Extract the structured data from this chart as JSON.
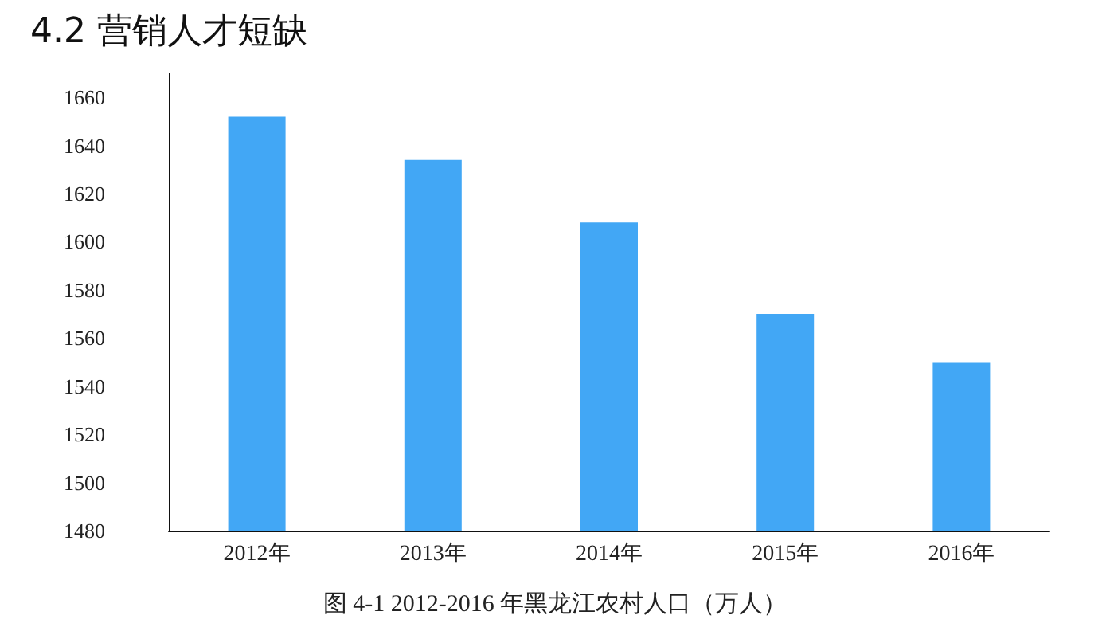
{
  "chart_data": {
    "type": "bar",
    "title": "4.2 营销人才短缺",
    "categories": [
      "2012年",
      "2013年",
      "2014年",
      "2015年",
      "2016年"
    ],
    "values": [
      1652,
      1634,
      1608,
      1570,
      1550
    ],
    "color": "#42a7f5",
    "ylim": [
      1480,
      1670
    ],
    "yticks": [
      1480,
      1500,
      1520,
      1540,
      1560,
      1580,
      1600,
      1620,
      1640,
      1660
    ],
    "grid": false,
    "annotations": [
      "图 4-1 2012-2016 年黑龙江农村人口（万人）"
    ]
  }
}
